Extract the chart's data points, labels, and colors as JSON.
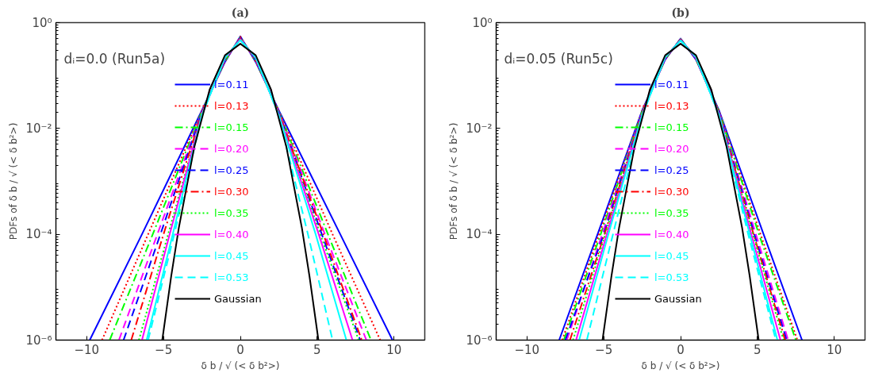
{
  "chart_data": [
    {
      "type": "line",
      "title": "(a)",
      "xlabel": "δ b / √ (< δ b²>)",
      "ylabel": "PDFs of δ b / √ (< δ b²>)",
      "annotations": [
        "dᵢ=0.0 (Run5a)"
      ],
      "log": "y",
      "grid": false,
      "legend": "center",
      "xlim": [
        -12,
        12
      ],
      "xticks": [
        -10,
        -5,
        0,
        5,
        10
      ],
      "ylim": [
        1e-06,
        1
      ],
      "yticks": [
        {
          "value": 1,
          "label": "10⁰"
        },
        {
          "value": 0.01,
          "label": "10⁻²"
        },
        {
          "value": 0.0001,
          "label": "10⁻⁴"
        },
        {
          "value": 1e-06,
          "label": "10⁻⁶"
        }
      ],
      "series": [
        {
          "name": "l=0.11",
          "color": "#0000ff",
          "line_style": "solid",
          "x": [
            -9.8,
            -6.4,
            -2.5,
            -1,
            0,
            1,
            2.5,
            6.5,
            9.9
          ],
          "values": [
            1e-06,
            0.0001,
            0.022,
            0.18,
            0.55,
            0.18,
            0.022,
            0.0001,
            1e-06
          ]
        },
        {
          "name": "l=0.13",
          "color": "#ff0000",
          "line_style": "dotted",
          "x": [
            -9.0,
            -6.0,
            -2.5,
            -1,
            0,
            1,
            2.5,
            6.0,
            9.1
          ],
          "values": [
            1e-06,
            0.0001,
            0.0215,
            0.185,
            0.54,
            0.185,
            0.0215,
            0.0001,
            1e-06
          ]
        },
        {
          "name": "l=0.15",
          "color": "#00ff00",
          "line_style": "dashdot",
          "x": [
            -8.5,
            -5.7,
            -2.5,
            -1,
            0,
            1,
            2.5,
            5.7,
            8.5
          ],
          "values": [
            1e-06,
            0.0001,
            0.021,
            0.19,
            0.53,
            0.19,
            0.021,
            0.0001,
            1e-06
          ]
        },
        {
          "name": "l=0.20",
          "color": "#ff00ff",
          "line_style": "dashed",
          "x": [
            -7.9,
            -5.4,
            -2.5,
            -1,
            0,
            1,
            2.5,
            5.5,
            8.2
          ],
          "values": [
            1e-06,
            0.0001,
            0.0205,
            0.195,
            0.52,
            0.195,
            0.0205,
            0.0001,
            1e-06
          ]
        },
        {
          "name": "l=0.25",
          "color": "#0000ff",
          "line_style": "dashed",
          "x": [
            -7.6,
            -5.2,
            -2.5,
            -1,
            0,
            1,
            2.5,
            5.3,
            7.8
          ],
          "values": [
            1e-06,
            0.0001,
            0.02,
            0.2,
            0.51,
            0.2,
            0.02,
            0.0001,
            1e-06
          ]
        },
        {
          "name": "l=0.30",
          "color": "#ff0000",
          "line_style": "dashdot",
          "x": [
            -7.1,
            -5.0,
            -2.5,
            -1,
            0,
            1,
            2.5,
            5.4,
            7.9
          ],
          "values": [
            1e-06,
            0.0001,
            0.0195,
            0.205,
            0.5,
            0.205,
            0.0195,
            0.0001,
            1e-06
          ]
        },
        {
          "name": "l=0.35",
          "color": "#00ff00",
          "line_style": "dotted",
          "x": [
            -6.6,
            -4.7,
            -2.5,
            -1,
            0,
            1,
            2.5,
            5.2,
            7.7
          ],
          "values": [
            1e-06,
            0.0001,
            0.019,
            0.21,
            0.49,
            0.21,
            0.019,
            0.0001,
            1e-06
          ]
        },
        {
          "name": "l=0.40",
          "color": "#ff00ff",
          "line_style": "solid",
          "x": [
            -6.4,
            -4.6,
            -2.5,
            -1,
            0,
            1,
            2.5,
            5.1,
            7.3
          ],
          "values": [
            1e-06,
            0.0001,
            0.0185,
            0.215,
            0.48,
            0.215,
            0.0185,
            0.0001,
            1e-06
          ]
        },
        {
          "name": "l=0.45",
          "color": "#00ffff",
          "line_style": "solid",
          "x": [
            -6.1,
            -4.4,
            -2.5,
            -1,
            0,
            1,
            2.5,
            4.9,
            6.9
          ],
          "values": [
            1e-06,
            0.0001,
            0.018,
            0.22,
            0.47,
            0.22,
            0.018,
            0.0001,
            1e-06
          ]
        },
        {
          "name": "l=0.53",
          "color": "#00ffff",
          "line_style": "dashed",
          "x": [
            -6.0,
            -4.3,
            -2.5,
            -1,
            0,
            1,
            2.5,
            4.4,
            6.0
          ],
          "values": [
            1e-06,
            0.0001,
            0.0175,
            0.225,
            0.46,
            0.225,
            0.0175,
            0.0001,
            1e-06
          ]
        },
        {
          "name": "Gaussian",
          "color": "#000000",
          "line_style": "solid",
          "x": [
            -5.08,
            -4.5,
            -4,
            -3,
            -2,
            -1,
            0,
            1,
            2,
            3,
            4,
            4.5,
            5.08
          ],
          "values": [
            1e-06,
            1.6e-05,
            0.000134,
            0.0044,
            0.054,
            0.242,
            0.399,
            0.242,
            0.054,
            0.0044,
            0.000134,
            1.6e-05,
            1e-06
          ]
        }
      ]
    },
    {
      "type": "line",
      "title": "(b)",
      "xlabel": "δ b / √ (< δ b²>)",
      "ylabel": "PDFs of δ b / √ (< δ b²>)",
      "annotations": [
        "dᵢ=0.05 (Run5c)"
      ],
      "log": "y",
      "grid": false,
      "legend": "center",
      "xlim": [
        -12,
        12
      ],
      "xticks": [
        -10,
        -5,
        0,
        5,
        10
      ],
      "ylim": [
        1e-06,
        1
      ],
      "yticks": [
        {
          "value": 1,
          "label": "10⁰"
        },
        {
          "value": 0.01,
          "label": "10⁻²"
        },
        {
          "value": 0.0001,
          "label": "10⁻⁴"
        },
        {
          "value": 1e-06,
          "label": "10⁻⁶"
        }
      ],
      "series": [
        {
          "name": "l=0.11",
          "color": "#0000ff",
          "line_style": "solid",
          "x": [
            -7.9,
            -5.4,
            -2.5,
            -1,
            0,
            1,
            2.5,
            5.4,
            7.9
          ],
          "values": [
            1e-06,
            0.0001,
            0.022,
            0.2,
            0.5,
            0.2,
            0.022,
            0.0001,
            1e-06
          ]
        },
        {
          "name": "l=0.13",
          "color": "#ff0000",
          "line_style": "dotted",
          "x": [
            -7.7,
            -5.3,
            -2.5,
            -1,
            0,
            1,
            2.5,
            5.2,
            7.6
          ],
          "values": [
            1e-06,
            0.0001,
            0.0215,
            0.203,
            0.495,
            0.203,
            0.0215,
            0.0001,
            1e-06
          ]
        },
        {
          "name": "l=0.15",
          "color": "#00ff00",
          "line_style": "dashdot",
          "x": [
            -7.6,
            -5.2,
            -2.5,
            -1,
            0,
            1,
            2.5,
            5.1,
            7.5
          ],
          "values": [
            1e-06,
            0.0001,
            0.021,
            0.206,
            0.49,
            0.206,
            0.021,
            0.0001,
            1e-06
          ]
        },
        {
          "name": "l=0.20",
          "color": "#ff00ff",
          "line_style": "dashed",
          "x": [
            -7.4,
            -5.1,
            -2.5,
            -1,
            0,
            1,
            2.5,
            4.9,
            7.0
          ],
          "values": [
            1e-06,
            0.0001,
            0.0205,
            0.209,
            0.485,
            0.209,
            0.0205,
            0.0001,
            1e-06
          ]
        },
        {
          "name": "l=0.25",
          "color": "#0000ff",
          "line_style": "dashed",
          "x": [
            -7.5,
            -5.0,
            -2.5,
            -1,
            0,
            1,
            2.5,
            4.8,
            6.9
          ],
          "values": [
            1e-06,
            0.0001,
            0.02,
            0.212,
            0.48,
            0.212,
            0.02,
            0.0001,
            1e-06
          ]
        },
        {
          "name": "l=0.30",
          "color": "#ff0000",
          "line_style": "dashdot",
          "x": [
            -7.2,
            -4.95,
            -2.5,
            -1,
            0,
            1,
            2.5,
            4.75,
            6.8
          ],
          "values": [
            1e-06,
            0.0001,
            0.0195,
            0.215,
            0.475,
            0.215,
            0.0195,
            0.0001,
            1e-06
          ]
        },
        {
          "name": "l=0.35",
          "color": "#00ff00",
          "line_style": "dotted",
          "x": [
            -7.0,
            -4.9,
            -2.5,
            -1,
            0,
            1,
            2.5,
            4.7,
            6.7
          ],
          "values": [
            1e-06,
            0.0001,
            0.019,
            0.218,
            0.47,
            0.218,
            0.019,
            0.0001,
            1e-06
          ]
        },
        {
          "name": "l=0.40",
          "color": "#ff00ff",
          "line_style": "solid",
          "x": [
            -6.8,
            -4.8,
            -2.5,
            -1,
            0,
            1,
            2.5,
            4.6,
            6.5
          ],
          "values": [
            1e-06,
            0.0001,
            0.0185,
            0.221,
            0.465,
            0.221,
            0.0185,
            0.0001,
            1e-06
          ]
        },
        {
          "name": "l=0.45",
          "color": "#00ffff",
          "line_style": "solid",
          "x": [
            -6.6,
            -4.7,
            -2.5,
            -1,
            0,
            1,
            2.5,
            4.5,
            6.3
          ],
          "values": [
            1e-06,
            0.0001,
            0.018,
            0.224,
            0.46,
            0.224,
            0.018,
            0.0001,
            1e-06
          ]
        },
        {
          "name": "l=0.53",
          "color": "#00ffff",
          "line_style": "dashed",
          "x": [
            -6.1,
            -4.4,
            -2.5,
            -1,
            0,
            1,
            2.5,
            4.4,
            6.2
          ],
          "values": [
            1e-06,
            0.0001,
            0.0175,
            0.227,
            0.455,
            0.227,
            0.0175,
            0.0001,
            1e-06
          ]
        },
        {
          "name": "Gaussian",
          "color": "#000000",
          "line_style": "solid",
          "x": [
            -5.08,
            -4.5,
            -4,
            -3,
            -2,
            -1,
            0,
            1,
            2,
            3,
            4,
            4.5,
            5.08
          ],
          "values": [
            1e-06,
            1.6e-05,
            0.000134,
            0.0044,
            0.054,
            0.242,
            0.399,
            0.242,
            0.054,
            0.0044,
            0.000134,
            1.6e-05,
            1e-06
          ]
        }
      ]
    }
  ]
}
